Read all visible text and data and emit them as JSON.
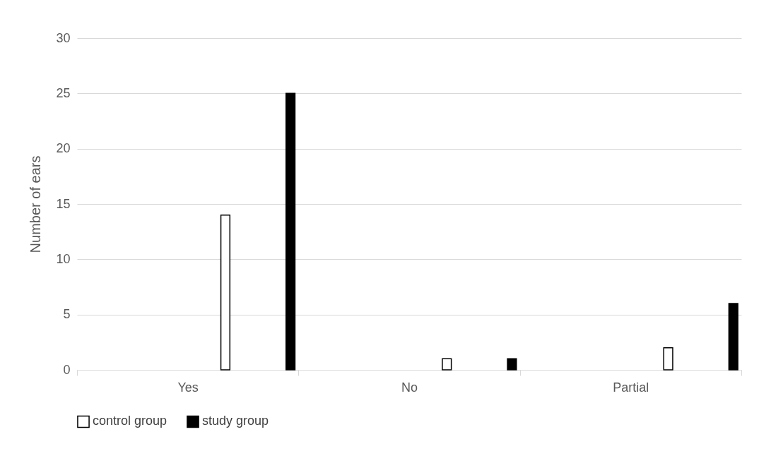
{
  "chart_data": {
    "type": "bar",
    "ylabel": "Number of ears",
    "categories": [
      "Yes",
      "No",
      "Partial"
    ],
    "series": [
      {
        "name": "control group",
        "color": "#ffffff",
        "values": [
          14,
          1,
          2
        ]
      },
      {
        "name": "study group",
        "color": "#000000",
        "values": [
          25,
          1,
          6
        ]
      }
    ],
    "ylim": [
      0,
      30
    ],
    "yticks": [
      0,
      5,
      10,
      15,
      20,
      25,
      30
    ],
    "grid": "y",
    "legend": "bottom"
  }
}
